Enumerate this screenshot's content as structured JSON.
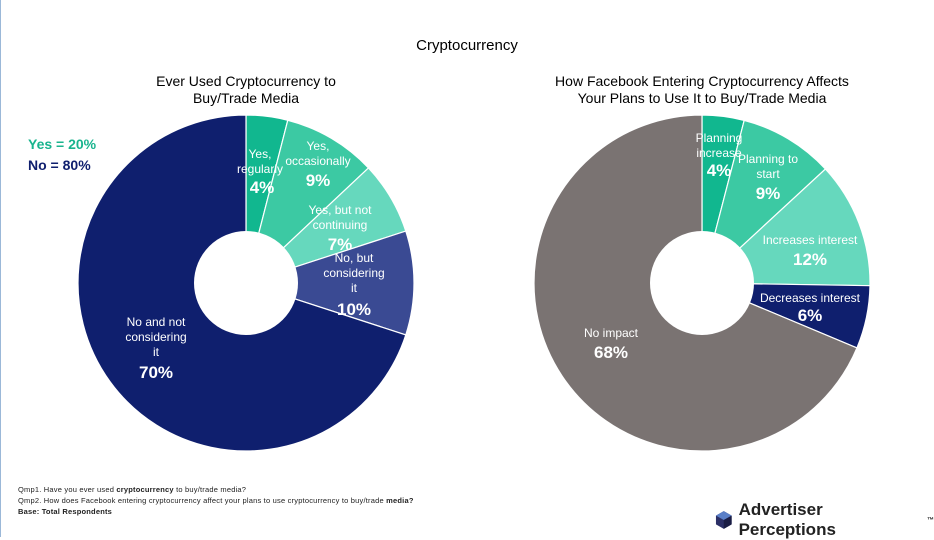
{
  "page_title": "Cryptocurrency",
  "summary": {
    "yes": "Yes = 20%",
    "no": "No = 80%",
    "yes_color": "#19b48e",
    "no_color": "#0f1f6e"
  },
  "chart_data": [
    {
      "type": "pie",
      "variant": "donut",
      "title_lines": [
        "Ever Used Cryptocurrency to",
        "Buy/Trade Media"
      ],
      "start": "top, clockwise",
      "slices": [
        {
          "label_lines": [
            "Yes,",
            "regularly"
          ],
          "value": 4,
          "value_label": "4%",
          "color": "#11b78f"
        },
        {
          "label_lines": [
            "Yes,",
            "occasionally"
          ],
          "value": 9,
          "value_label": "9%",
          "color": "#3cc9a3"
        },
        {
          "label_lines": [
            "Yes, but not",
            "continuing"
          ],
          "value": 7,
          "value_label": "7%",
          "color": "#66d8bd"
        },
        {
          "label_lines": [
            "No, but",
            "considering",
            "it"
          ],
          "value": 10,
          "value_label": "10%",
          "color": "#3a4a93"
        },
        {
          "label_lines": [
            "No and not",
            "considering",
            "it"
          ],
          "value": 70,
          "value_label": "70%",
          "color": "#0f1f6e"
        }
      ]
    },
    {
      "type": "pie",
      "variant": "donut",
      "title_lines": [
        "How Facebook Entering Cryptocurrency Affects",
        "Your Plans to Use It to Buy/Trade Media"
      ],
      "start": "top, clockwise",
      "slices": [
        {
          "label_lines": [
            "Planning",
            "increase"
          ],
          "value": 4,
          "value_label": "4%",
          "color": "#11b78f"
        },
        {
          "label_lines": [
            "Planning to",
            "start"
          ],
          "value": 9,
          "value_label": "9%",
          "color": "#3cc9a3"
        },
        {
          "label_lines": [
            "Increases interest"
          ],
          "value": 12,
          "value_label": "12%",
          "color": "#66d8bd"
        },
        {
          "label_lines": [
            "Decreases interest"
          ],
          "value": 6,
          "value_label": "6%",
          "color": "#0f1f6e"
        },
        {
          "label_lines": [
            "No impact"
          ],
          "value": 68,
          "value_label": "68%",
          "color": "#7a7372"
        }
      ]
    }
  ],
  "footnotes": {
    "q1_pre": "Qmp1. Have you ever used ",
    "q1_bold": "cryptocurrency",
    "q1_post": " to buy/trade media?",
    "q2_pre": "Qmp2. How does Facebook entering cryptocurrency affect your plans to use cryptocurrency to buy/trade ",
    "q2_bold": "media?",
    "base": "Base: Total Respondents"
  },
  "brand": {
    "name": "Advertiser Perceptions",
    "trademark": "™"
  }
}
